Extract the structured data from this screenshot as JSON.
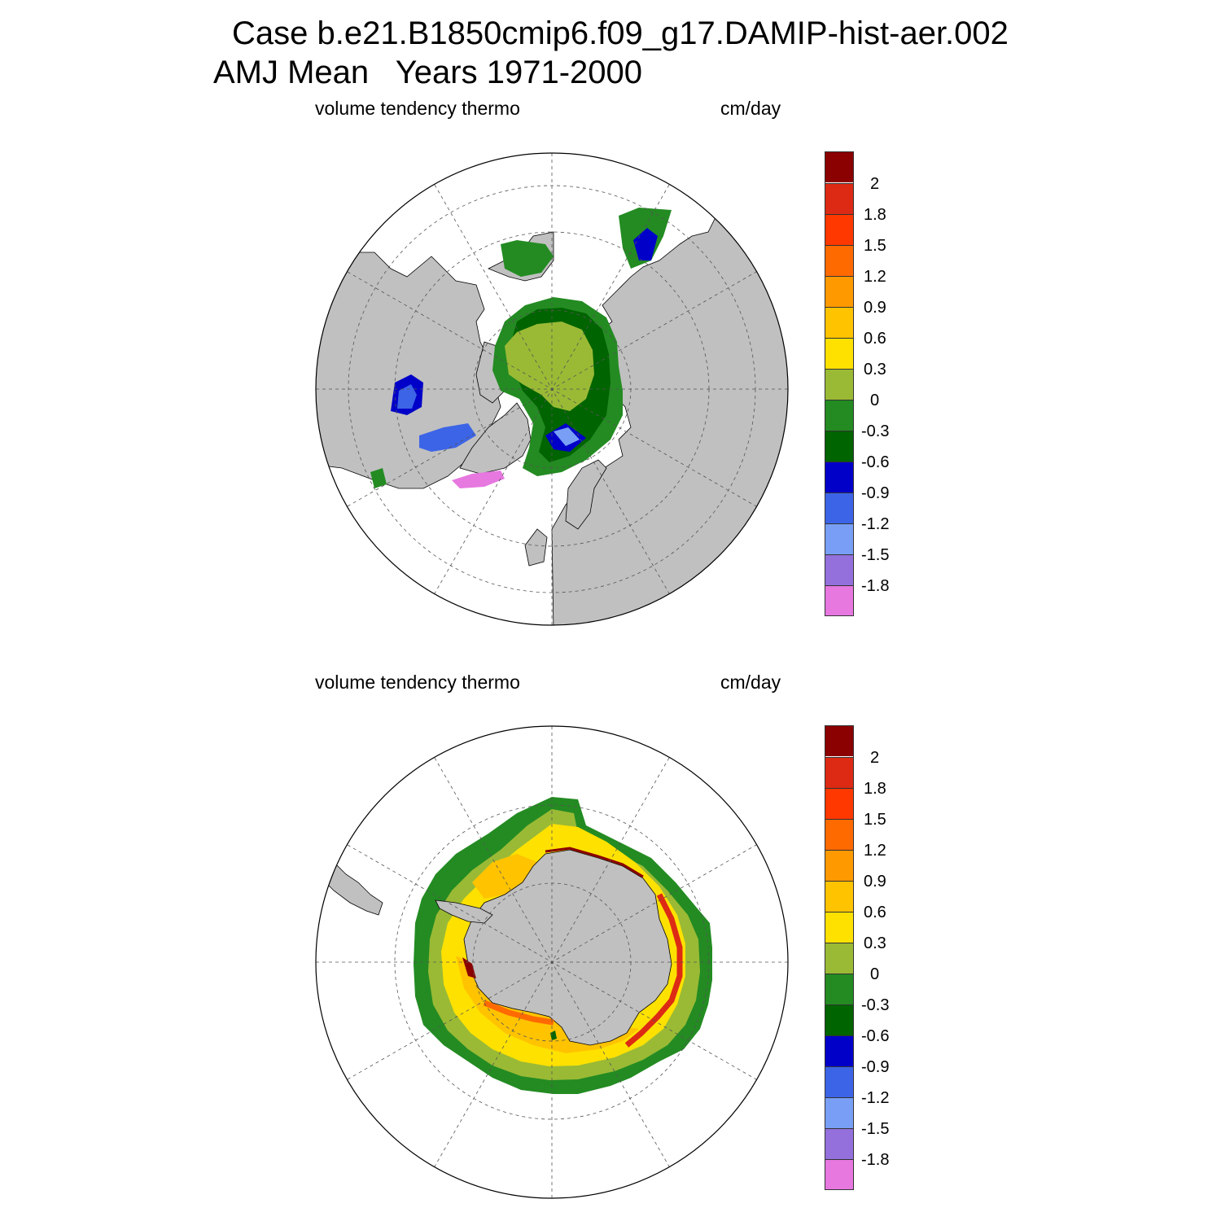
{
  "title_line1": "Case b.e21.B1850cmip6.f09_g17.DAMIP-hist-aer.002",
  "title_line2": "AMJ Mean   Years 1971-2000",
  "panels": [
    {
      "id": "north",
      "left_label": "volume tendency thermo",
      "right_label": "cm/day",
      "hemisphere": "northern"
    },
    {
      "id": "south",
      "left_label": "volume tendency thermo",
      "right_label": "cm/day",
      "hemisphere": "southern"
    }
  ],
  "colorbar": {
    "colors": [
      "#8b0000",
      "#dc2a14",
      "#ff3800",
      "#ff6a00",
      "#ff9900",
      "#ffc300",
      "#ffe100",
      "#9aba35",
      "#238b22",
      "#006400",
      "#0000c8",
      "#3c64e6",
      "#789ff5",
      "#9370db",
      "#e678e0"
    ],
    "labels": [
      "2",
      "1.8",
      "1.5",
      "1.2",
      "0.9",
      "0.6",
      "0.3",
      "0",
      "-0.3",
      "-0.6",
      "-0.9",
      "-1.2",
      "-1.5",
      "-1.8"
    ]
  },
  "colors": {
    "land": "#c0c0c0",
    "ocean": "#ffffff"
  }
}
